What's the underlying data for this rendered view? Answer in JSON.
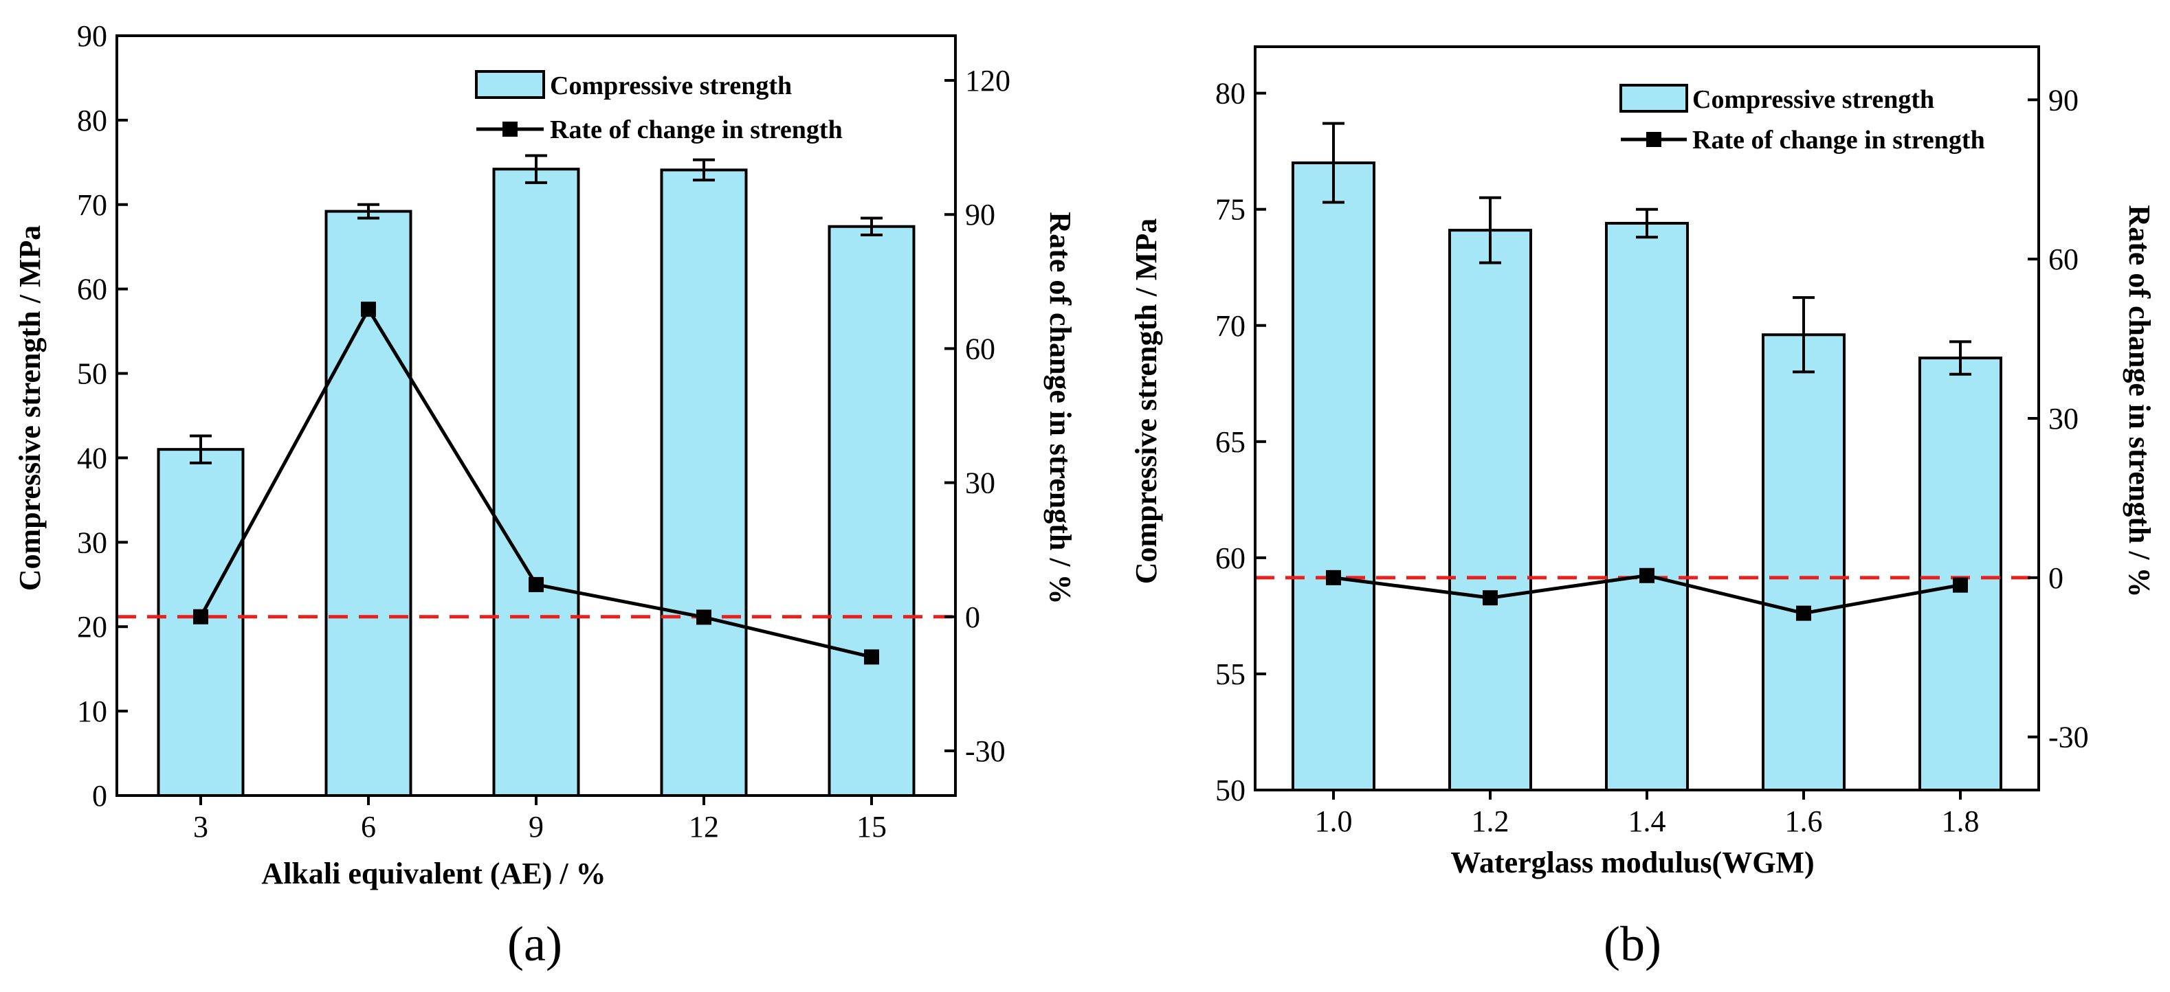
{
  "chart_data": [
    {
      "panel": "(a)",
      "type": "bar",
      "categories": [
        "3",
        "6",
        "9",
        "12",
        "15"
      ],
      "series": [
        {
          "name": "Compressive strength",
          "type": "bar",
          "axis": "left",
          "values": [
            41.0,
            69.2,
            74.2,
            74.1,
            67.4
          ],
          "errors": [
            1.6,
            0.8,
            1.6,
            1.2,
            1.0
          ]
        },
        {
          "name": "Rate of change in strength",
          "type": "line",
          "axis": "right",
          "values": [
            0,
            68.8,
            7.2,
            -0.1,
            -9.0
          ]
        }
      ],
      "xlabel": "Alkali equivalent (AE) / %",
      "ylabel": "Compressive strength / MPa",
      "y2label": "Rate of change in strength / %",
      "ylim": [
        0,
        90
      ],
      "yticks": [
        0,
        10,
        20,
        30,
        40,
        50,
        60,
        70,
        80,
        90
      ],
      "y2lim": [
        -40,
        130
      ],
      "y2ticks": [
        -30,
        0,
        30,
        60,
        90,
        120
      ],
      "y2tick_labels": [
        "-30",
        "0",
        "30",
        "60",
        "90",
        "120"
      ],
      "reference_line": {
        "axis": "right",
        "value": 0,
        "color": "#e8211e"
      },
      "legend": "top-right",
      "colors": {
        "bar": "#a5e6f7",
        "line": "#000000",
        "reference": "#e8211e"
      }
    },
    {
      "panel": "(b)",
      "type": "bar",
      "categories": [
        "1.0",
        "1.2",
        "1.4",
        "1.6",
        "1.8"
      ],
      "series": [
        {
          "name": "Compressive strength",
          "type": "bar",
          "axis": "left",
          "values": [
            77.0,
            74.1,
            74.4,
            69.6,
            68.6
          ],
          "errors": [
            1.7,
            1.4,
            0.6,
            1.6,
            0.7
          ]
        },
        {
          "name": "Rate of change in strength",
          "type": "line",
          "axis": "right",
          "values": [
            0,
            -3.8,
            0.4,
            -6.7,
            -1.4
          ]
        }
      ],
      "xlabel": "Waterglass modulus(WGM)",
      "ylabel": "Compressive strength / MPa",
      "y2label": "Rate of change in strength / %",
      "ylim": [
        50,
        82
      ],
      "yticks": [
        50,
        55,
        60,
        65,
        70,
        75,
        80
      ],
      "y2lim": [
        -40,
        100
      ],
      "y2ticks": [
        -30,
        0,
        30,
        60,
        90
      ],
      "y2tick_labels": [
        "-30",
        "0",
        "30",
        "60",
        "90"
      ],
      "reference_line": {
        "axis": "right",
        "value": 0,
        "color": "#e8211e"
      },
      "legend": "top-right",
      "colors": {
        "bar": "#a5e6f7",
        "line": "#000000",
        "reference": "#e8211e"
      }
    }
  ]
}
